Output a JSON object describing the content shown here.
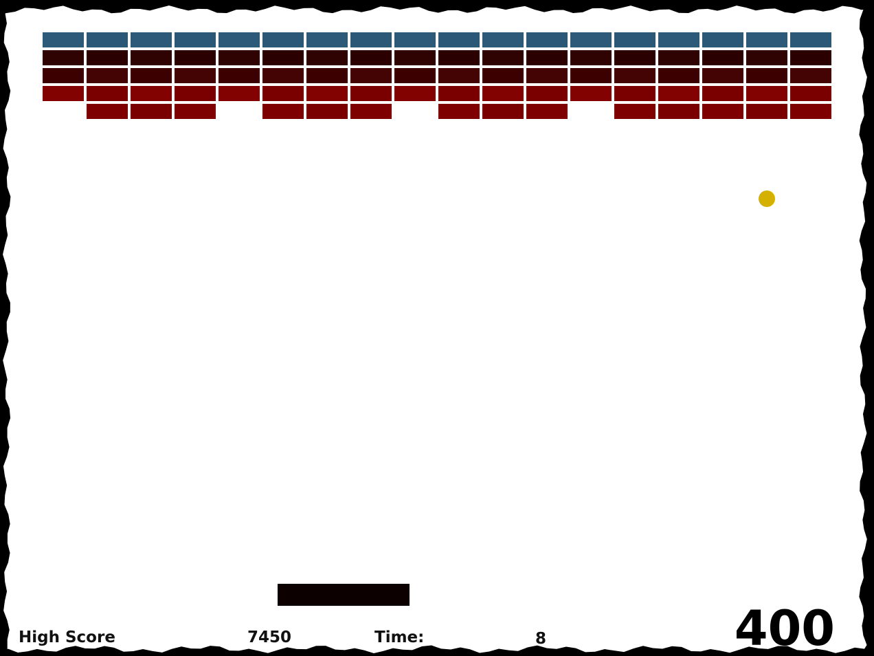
{
  "hud": {
    "high_score_label": "High Score",
    "high_score": 7450,
    "time_label": "Time:",
    "time": 8,
    "score": 400
  }
}
